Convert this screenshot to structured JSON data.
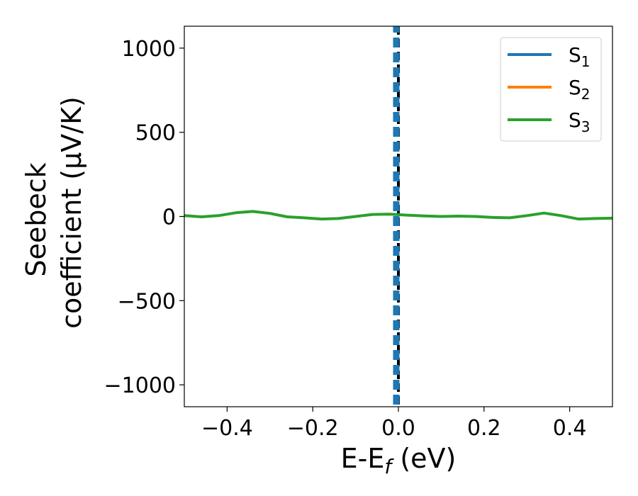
{
  "chart_data": {
    "type": "line",
    "xlabel_main": "E-E",
    "xlabel_sub": "f",
    "xlabel_unit": " (eV)",
    "ylabel_line1": "Seebeck",
    "ylabel_line2": "coefficient  (μV/K)",
    "xlim": [
      -0.5,
      0.5
    ],
    "ylim": [
      -1130,
      1130
    ],
    "xticks": [
      -0.4,
      -0.2,
      0.0,
      0.2,
      0.4
    ],
    "xtick_labels": [
      "−0.4",
      "−0.2",
      "0.0",
      "0.2",
      "0.4"
    ],
    "yticks": [
      -1000,
      -500,
      0,
      500,
      1000
    ],
    "ytick_labels": [
      "−1000",
      "−500",
      "0",
      "500",
      "1000"
    ],
    "legend_position": "top-right",
    "series": [
      {
        "name": "S",
        "subscript": "1",
        "color": "#1f77b4",
        "x": [],
        "y": []
      },
      {
        "name": "S",
        "subscript": "2",
        "color": "#ff7f0e",
        "x": [],
        "y": []
      },
      {
        "name": "S",
        "subscript": "3",
        "color": "#2ca02c",
        "x": [
          -0.5,
          -0.46,
          -0.42,
          -0.38,
          -0.34,
          -0.3,
          -0.26,
          -0.22,
          -0.18,
          -0.14,
          -0.1,
          -0.06,
          -0.02,
          0.02,
          0.06,
          0.1,
          0.14,
          0.18,
          0.22,
          0.26,
          0.3,
          0.34,
          0.38,
          0.42,
          0.46,
          0.5
        ],
        "y": [
          5,
          -2,
          5,
          22,
          30,
          18,
          -2,
          -8,
          -15,
          -12,
          0,
          12,
          14,
          8,
          3,
          0,
          2,
          0,
          -6,
          -8,
          5,
          20,
          5,
          -15,
          -12,
          -10
        ]
      }
    ],
    "vertical_lines": [
      {
        "x": 0.0,
        "color": "#000000",
        "style": "dashed"
      },
      {
        "x": -0.005,
        "color": "#1f77b4",
        "style": "dashed"
      }
    ]
  }
}
